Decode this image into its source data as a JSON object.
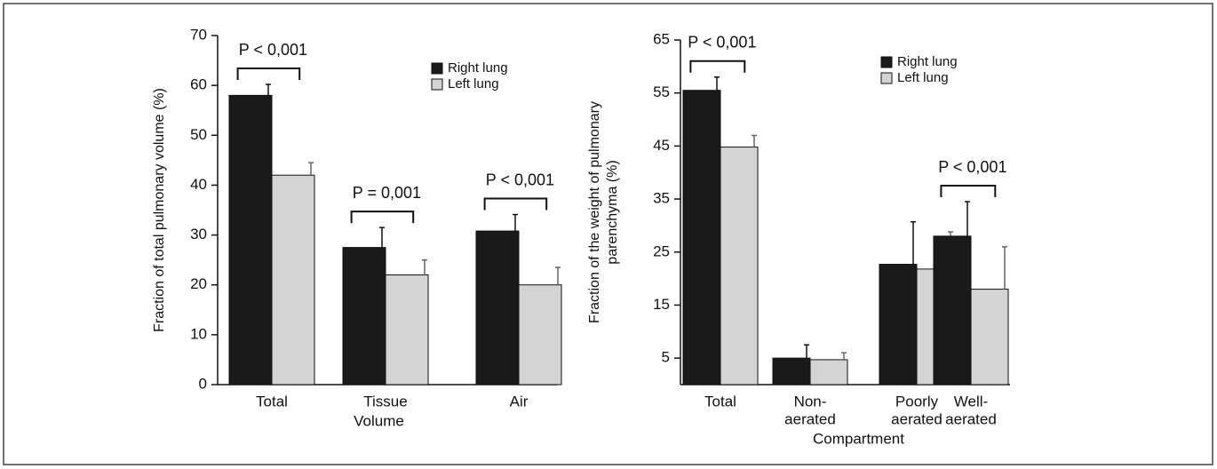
{
  "chart_data": [
    {
      "type": "bar",
      "ylabel": [
        "Fraction of total pulmonary volume (%)"
      ],
      "xlabel": "Volume",
      "categories": [
        [
          "Total"
        ],
        [
          "Tissue"
        ],
        [
          "Air"
        ]
      ],
      "series": [
        {
          "name": "Right lung",
          "color": "#1a1a1a",
          "values": [
            58,
            27.5,
            30.8
          ],
          "errors": [
            2.2,
            4,
            3.3
          ]
        },
        {
          "name": "Left lung",
          "color": "#d4d4d4",
          "values": [
            42,
            22,
            20
          ],
          "errors": [
            2.5,
            3,
            3.5
          ]
        }
      ],
      "annotations": [
        "P < 0,001",
        "P = 0,001",
        "P < 0,001"
      ],
      "ylim": [
        0,
        70
      ],
      "yticks": [
        0,
        10,
        20,
        30,
        40,
        50,
        60,
        70
      ],
      "legend": "upper right"
    },
    {
      "type": "bar",
      "ylabel": [
        "Fraction of the weight of pulmonary",
        "parenchyma (%)"
      ],
      "xlabel": "Compartment",
      "categories": [
        [
          "Total"
        ],
        [
          "Non-",
          "aerated"
        ],
        [
          "Poorly",
          "aerated"
        ],
        [
          "Well-",
          "aerated"
        ]
      ],
      "series": [
        {
          "name": "Right lung",
          "color": "#1a1a1a",
          "values": [
            55.5,
            5,
            22.7,
            28
          ],
          "errors": [
            2.5,
            2.5,
            8,
            6.5
          ]
        },
        {
          "name": "Left lung",
          "color": "#d4d4d4",
          "values": [
            44.8,
            4.7,
            21.8,
            18
          ],
          "errors": [
            2.2,
            1.3,
            7,
            8
          ]
        }
      ],
      "annotations": [
        "P < 0,001",
        null,
        null,
        "P < 0,001"
      ],
      "ylim": [
        0,
        65
      ],
      "yticks": [
        5,
        15,
        25,
        35,
        45,
        55,
        65
      ],
      "legend": "upper right"
    }
  ]
}
